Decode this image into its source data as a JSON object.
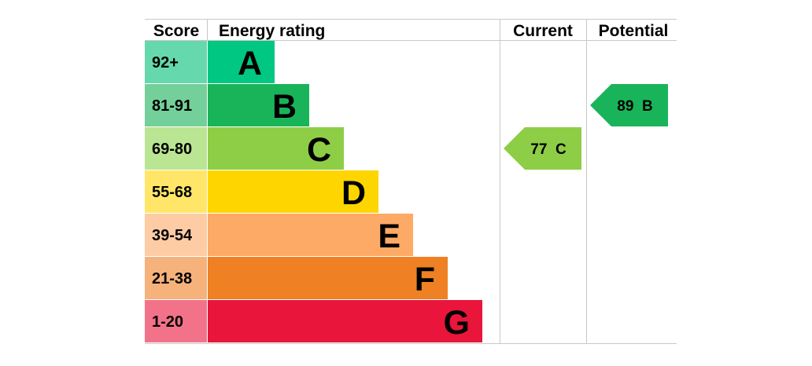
{
  "chart_data": {
    "type": "table",
    "headers": {
      "score": "Score",
      "rating": "Energy rating",
      "current": "Current",
      "potential": "Potential"
    },
    "bands": [
      {
        "score": "92+",
        "letter": "A",
        "color": "#00c781",
        "score_color": "#66d8ad"
      },
      {
        "score": "81-91",
        "letter": "B",
        "color": "#19b459",
        "score_color": "#74d09a"
      },
      {
        "score": "69-80",
        "letter": "C",
        "color": "#8dce46",
        "score_color": "#bae593"
      },
      {
        "score": "55-68",
        "letter": "D",
        "color": "#ffd500",
        "score_color": "#ffe669"
      },
      {
        "score": "39-54",
        "letter": "E",
        "color": "#fcaa65",
        "score_color": "#fdcca4"
      },
      {
        "score": "21-38",
        "letter": "F",
        "color": "#ef8023",
        "score_color": "#f5b27b"
      },
      {
        "score": "1-20",
        "letter": "G",
        "color": "#e9153b",
        "score_color": "#f27389"
      }
    ],
    "current": {
      "value": 77,
      "letter": "C",
      "label": "77  C",
      "color": "#8dce46"
    },
    "potential": {
      "value": 89,
      "letter": "B",
      "label": "89  B",
      "color": "#19b459"
    }
  }
}
